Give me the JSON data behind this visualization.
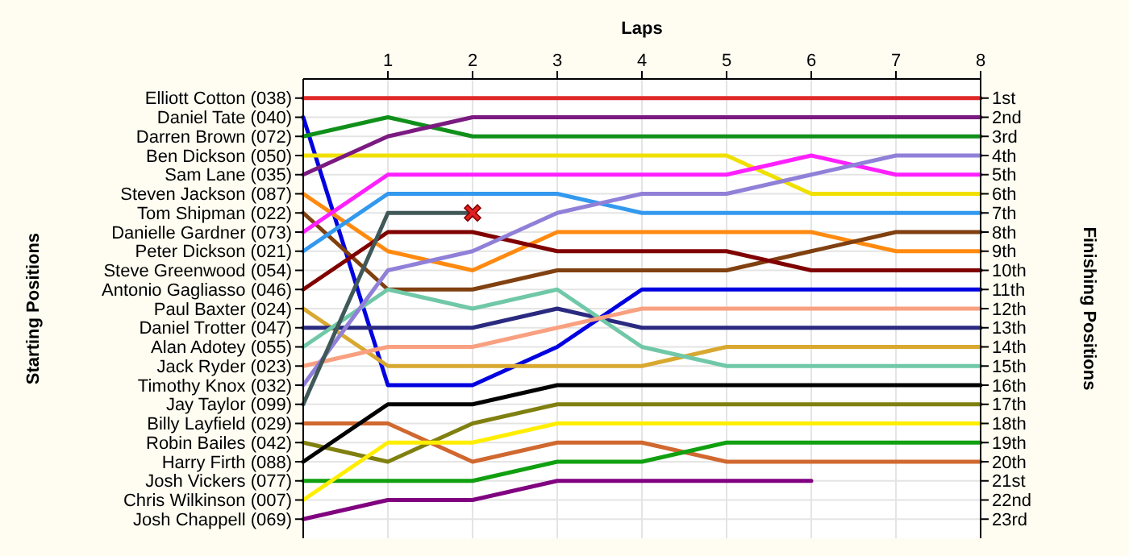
{
  "chart_data": {
    "type": "line",
    "xlabel": "Laps",
    "annotations": [
      "Starting Positions"
    ],
    "y2label": "Finishing Positions",
    "x": [
      0,
      1,
      2,
      3,
      4,
      5,
      6,
      7,
      8
    ],
    "xlim": [
      0,
      8
    ],
    "xticks": [
      1,
      2,
      3,
      4,
      5,
      6,
      7,
      8
    ],
    "y_categories": [
      "Elliott Cotton (038)",
      "Daniel Tate (040)",
      "Darren Brown (072)",
      "Ben Dickson (050)",
      "Sam Lane (035)",
      "Steven Jackson (087)",
      "Tom Shipman (022)",
      "Danielle Gardner (073)",
      "Peter Dickson (021)",
      "Steve Greenwood (054)",
      "Antonio Gagliasso (046)",
      "Paul Baxter (024)",
      "Daniel Trotter (047)",
      "Alan Adotey (055)",
      "Jack Ryder (023)",
      "Timothy Knox (032)",
      "Jay Taylor (099)",
      "Billy Layfield (029)",
      "Robin Bailes (042)",
      "Harry Firth (088)",
      "Josh Vickers (077)",
      "Chris Wilkinson (007)",
      "Josh Chappell (069)"
    ],
    "y2lim": [
      24,
      0
    ],
    "y2ticks": [
      {
        "value": 1,
        "label": "1st"
      },
      {
        "value": 2,
        "label": "2nd"
      },
      {
        "value": 3,
        "label": "3rd"
      },
      {
        "value": 4,
        "label": "4th"
      },
      {
        "value": 5,
        "label": "5th"
      },
      {
        "value": 6,
        "label": "6th"
      },
      {
        "value": 7,
        "label": "7th"
      },
      {
        "value": 8,
        "label": "8th"
      },
      {
        "value": 9,
        "label": "9th"
      },
      {
        "value": 10,
        "label": "10th"
      },
      {
        "value": 11,
        "label": "11th"
      },
      {
        "value": 12,
        "label": "12th"
      },
      {
        "value": 13,
        "label": "13th"
      },
      {
        "value": 14,
        "label": "14th"
      },
      {
        "value": 15,
        "label": "15th"
      },
      {
        "value": 16,
        "label": "16th"
      },
      {
        "value": 17,
        "label": "17th"
      },
      {
        "value": 18,
        "label": "18th"
      },
      {
        "value": 19,
        "label": "19th"
      },
      {
        "value": 20,
        "label": "20th"
      },
      {
        "value": 21,
        "label": "21st"
      },
      {
        "value": 22,
        "label": "22nd"
      },
      {
        "value": 23,
        "label": "23rd"
      }
    ],
    "grid": true,
    "line_style": "solid",
    "marker": "none",
    "series": [
      {
        "axis": "y2",
        "color": "#e02828",
        "values": [
          1,
          1,
          1,
          1,
          1,
          1,
          1,
          1,
          1
        ]
      },
      {
        "axis": "y2",
        "color": "#0000e0",
        "values": [
          2,
          16,
          16,
          14,
          11,
          11,
          11,
          11,
          11
        ]
      },
      {
        "axis": "y2",
        "color": "#10901a",
        "values": [
          3,
          2,
          3,
          3,
          3,
          3,
          3,
          3,
          3
        ]
      },
      {
        "axis": "y2",
        "color": "#f0e000",
        "values": [
          4,
          4,
          4,
          4,
          4,
          4,
          6,
          6,
          6
        ]
      },
      {
        "axis": "y2",
        "color": "#7b1a80",
        "values": [
          5,
          3,
          2,
          2,
          2,
          2,
          2,
          2,
          2
        ]
      },
      {
        "axis": "y2",
        "color": "#ff8a10",
        "values": [
          6,
          9,
          10,
          8,
          8,
          8,
          8,
          9,
          9
        ]
      },
      {
        "axis": "y2",
        "color": "#804010",
        "values": [
          7,
          11,
          11,
          10,
          10,
          10,
          9,
          8,
          8
        ]
      },
      {
        "axis": "y2",
        "color": "#ff20ff",
        "values": [
          8,
          5,
          5,
          5,
          5,
          5,
          4,
          5,
          5
        ]
      },
      {
        "axis": "y2",
        "color": "#3399ee",
        "values": [
          9,
          6,
          6,
          6,
          7,
          7,
          7,
          7,
          7
        ]
      },
      {
        "axis": "y2",
        "color": "#800000",
        "values": [
          11,
          8,
          8,
          9,
          9,
          9,
          10,
          10,
          10
        ]
      },
      {
        "axis": "y2",
        "color": "#d8a830",
        "values": [
          12,
          15,
          15,
          15,
          15,
          14,
          14,
          14,
          14
        ]
      },
      {
        "axis": "y2",
        "color": "#2a2a80",
        "values": [
          13,
          13,
          13,
          12,
          13,
          13,
          13,
          13,
          13
        ]
      },
      {
        "axis": "y2",
        "color": "#70c8a8",
        "values": [
          14,
          11,
          12,
          11,
          14,
          15,
          15,
          15,
          15
        ]
      },
      {
        "axis": "y2",
        "color": "#f8a080",
        "values": [
          15,
          14,
          14,
          13,
          12,
          12,
          12,
          12,
          12
        ]
      },
      {
        "axis": "y2",
        "color": "#9080d8",
        "values": [
          16,
          10,
          9,
          7,
          6,
          6,
          5,
          4,
          4
        ]
      },
      {
        "axis": "y2",
        "color": "#405858",
        "values": [
          17,
          7,
          7,
          null,
          null,
          null,
          null,
          null,
          null
        ]
      },
      {
        "axis": "y2",
        "color": "#d06830",
        "values": [
          18,
          18,
          20,
          19,
          19,
          20,
          20,
          20,
          20
        ]
      },
      {
        "axis": "y2",
        "color": "#808010",
        "values": [
          19,
          20,
          18,
          17,
          17,
          17,
          17,
          17,
          17
        ]
      },
      {
        "axis": "y2",
        "color": "#000000",
        "values": [
          20,
          17,
          17,
          16,
          16,
          16,
          16,
          16,
          16
        ]
      },
      {
        "axis": "y2",
        "color": "#10a010",
        "values": [
          21,
          21,
          21,
          20,
          20,
          19,
          19,
          19,
          19
        ]
      },
      {
        "axis": "y2",
        "color": "#ffee00",
        "values": [
          22,
          19,
          19,
          18,
          18,
          18,
          18,
          18,
          18
        ]
      },
      {
        "axis": "y2",
        "color": "#800080",
        "values": [
          23,
          22,
          22,
          21,
          21,
          21,
          21,
          null,
          null
        ]
      },
      {
        "axis": "y2",
        "type": "scatter",
        "marker": "cross",
        "color": "#e02020",
        "x": [
          2
        ],
        "values": [
          7
        ]
      }
    ]
  }
}
